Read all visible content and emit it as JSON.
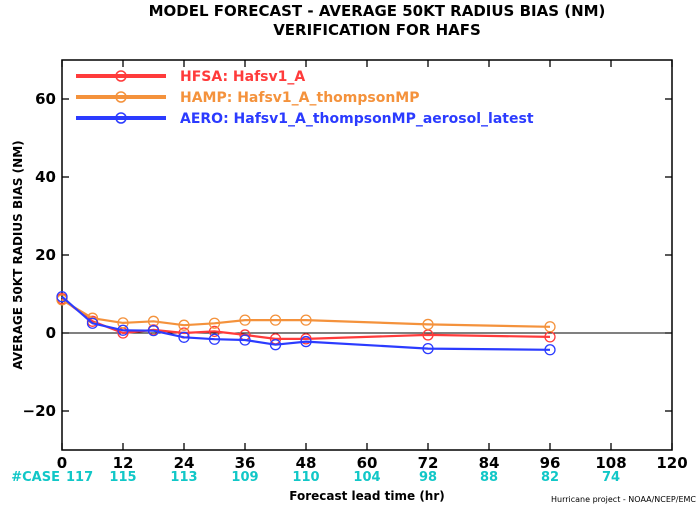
{
  "chart_data": {
    "type": "line",
    "title": "MODEL FORECAST - AVERAGE 50KT RADIUS BIAS (NM)",
    "subtitle": "VERIFICATION FOR HAFS",
    "ylabel": "AVERAGE 50KT RADIUS BIAS (NM)",
    "xlabel": "Forecast lead time (hr)",
    "xlim": [
      0,
      120
    ],
    "ylim": [
      -30,
      70
    ],
    "x_ticks": [
      0,
      12,
      24,
      36,
      48,
      60,
      72,
      84,
      96,
      108,
      120
    ],
    "y_ticks": [
      -20,
      0,
      20,
      40,
      60
    ],
    "zero_line": true,
    "legend_position": "top-left",
    "series": [
      {
        "name": "HFSA: Hafsv1_A",
        "color": "#ff3b3b",
        "x": [
          0,
          6,
          12,
          18,
          24,
          30,
          36,
          42,
          48,
          72,
          96
        ],
        "y": [
          8.8,
          3.0,
          0.0,
          0.8,
          0.0,
          0.4,
          -0.5,
          -1.5,
          -1.5,
          -0.5,
          -1.0
        ]
      },
      {
        "name": "HAMP: Hafsv1_A_thompsonMP",
        "color": "#f4923c",
        "x": [
          0,
          6,
          12,
          18,
          24,
          30,
          36,
          42,
          48,
          72,
          96
        ],
        "y": [
          8.5,
          3.8,
          2.6,
          3.0,
          2.0,
          2.5,
          3.3,
          3.3,
          3.3,
          2.2,
          1.6
        ]
      },
      {
        "name": "AERO: Hafsv1_A_thompsonMP_aerosol_latest",
        "color": "#2b3bff",
        "x": [
          0,
          6,
          12,
          18,
          24,
          30,
          36,
          42,
          48,
          72,
          96
        ],
        "y": [
          9.3,
          2.5,
          0.7,
          0.6,
          -1.1,
          -1.6,
          -1.8,
          -3.0,
          -2.2,
          -4.0,
          -4.3
        ]
      }
    ],
    "case_counts": {
      "label": "#CASE",
      "color": "#11c7c7",
      "items": [
        {
          "x": 0,
          "value": "117"
        },
        {
          "x": 12,
          "value": "115"
        },
        {
          "x": 24,
          "value": "113"
        },
        {
          "x": 36,
          "value": "109"
        },
        {
          "x": 48,
          "value": "110"
        },
        {
          "x": 60,
          "value": "104"
        },
        {
          "x": 72,
          "value": "98"
        },
        {
          "x": 84,
          "value": "88"
        },
        {
          "x": 96,
          "value": "82"
        },
        {
          "x": 108,
          "value": "74"
        }
      ]
    },
    "credit": "Hurricane project - NOAA/NCEP/EMC"
  }
}
